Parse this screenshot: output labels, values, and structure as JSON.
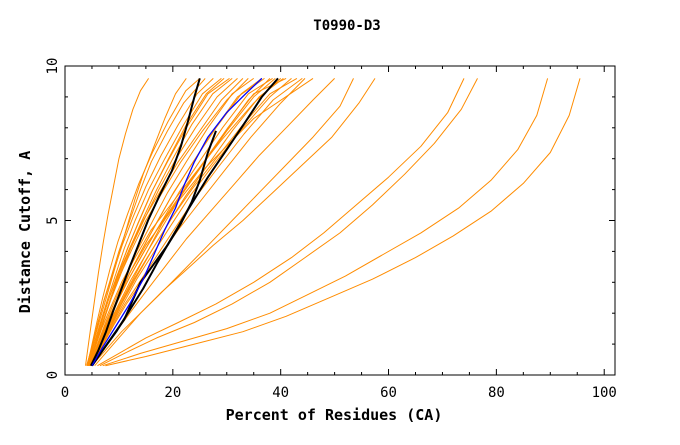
{
  "chart_data": {
    "type": "line",
    "title": "T0990-D3",
    "xlabel": "Percent of Residues (CA)",
    "ylabel": "Distance Cutoff, A",
    "xlim": [
      0,
      102
    ],
    "ylim": [
      0,
      10
    ],
    "x_ticks": [
      0,
      20,
      40,
      60,
      80,
      100
    ],
    "y_ticks": [
      0,
      5,
      10
    ],
    "grid": false,
    "legend": "none",
    "colors": {
      "background": "#ffffff",
      "models": "#ff8c00",
      "highlight_black": "#000000",
      "highlight_blue": "#0000ff",
      "frame": "#000000"
    },
    "series": [
      {
        "color": "#ff8c00",
        "x": [
          4.5,
          6,
          7.5,
          9,
          10.5,
          12,
          15,
          20,
          26,
          35,
          46
        ],
        "y": [
          0.3,
          0.8,
          1.5,
          2.1,
          2.7,
          3.3,
          4.2,
          5.4,
          6.7,
          8.3,
          9.6
        ]
      },
      {
        "color": "#ff8c00",
        "x": [
          4.4,
          5.4,
          6.8,
          8.5,
          10.5,
          13,
          16,
          20,
          24,
          29,
          35,
          40
        ],
        "y": [
          0.3,
          0.8,
          1.5,
          2.2,
          3,
          3.8,
          4.7,
          5.6,
          6.5,
          7.6,
          8.8,
          9.6
        ]
      },
      {
        "color": "#ff8c00",
        "x": [
          4,
          5,
          6,
          7.2,
          8.6,
          10,
          12,
          14,
          16,
          19,
          22,
          26
        ],
        "y": [
          0.3,
          0.9,
          1.6,
          2.4,
          3.2,
          4,
          5,
          6,
          6.9,
          7.9,
          8.8,
          9.6
        ]
      },
      {
        "color": "#ff8c00",
        "x": [
          4.3,
          5.5,
          7,
          8.5,
          10,
          12,
          14.5,
          17.5,
          21,
          25,
          29,
          33
        ],
        "y": [
          0.3,
          0.9,
          1.7,
          2.5,
          3.3,
          4.1,
          5,
          5.9,
          6.9,
          7.9,
          8.9,
          9.6
        ]
      },
      {
        "color": "#ff8c00",
        "x": [
          4.6,
          6,
          7.6,
          9.5,
          11.5,
          14,
          17,
          20.5,
          24.5,
          29,
          34,
          38
        ],
        "y": [
          0.3,
          0.9,
          1.6,
          2.3,
          3,
          3.8,
          4.7,
          5.6,
          6.6,
          7.7,
          8.9,
          9.6
        ]
      },
      {
        "color": "#ff8c00",
        "x": [
          4.8,
          6.5,
          8.5,
          10.5,
          13,
          16,
          19.5,
          23.5,
          28,
          33,
          38,
          43
        ],
        "y": [
          0.3,
          0.9,
          1.6,
          2.3,
          3.1,
          4,
          5,
          6,
          7,
          8.1,
          9.1,
          9.6
        ]
      },
      {
        "color": "#ff8c00",
        "x": [
          4.2,
          5.2,
          6.4,
          7.8,
          9.3,
          11,
          13,
          15.5,
          18.5,
          22,
          25.5,
          29
        ],
        "y": [
          0.3,
          0.9,
          1.6,
          2.4,
          3.2,
          4.1,
          5,
          6,
          7,
          8.1,
          9.1,
          9.6
        ]
      },
      {
        "color": "#ff8c00",
        "x": [
          4.5,
          5.8,
          7.3,
          9,
          11,
          13.3,
          16,
          19,
          22.5,
          26.5,
          31,
          35
        ],
        "y": [
          0.3,
          0.9,
          1.6,
          2.3,
          3.1,
          4,
          4.9,
          5.9,
          6.9,
          8,
          9.1,
          9.6
        ]
      },
      {
        "color": "#ff8c00",
        "x": [
          4.4,
          5.6,
          7,
          8.6,
          10.4,
          12.5,
          15,
          18,
          21.5,
          25.5,
          30,
          34
        ],
        "y": [
          0.3,
          0.9,
          1.7,
          2.5,
          3.3,
          4.1,
          5,
          5.9,
          6.9,
          7.9,
          8.9,
          9.6
        ]
      },
      {
        "color": "#ff8c00",
        "x": [
          4.7,
          6.2,
          8,
          10,
          12.3,
          15,
          18,
          21.5,
          25.5,
          30,
          35,
          39
        ],
        "y": [
          0.3,
          0.9,
          1.6,
          2.3,
          3.1,
          3.9,
          4.9,
          5.8,
          6.8,
          7.9,
          9,
          9.6
        ]
      },
      {
        "color": "#ff8c00",
        "x": [
          4.3,
          5.4,
          6.6,
          8,
          9.6,
          11.4,
          13.5,
          16,
          19,
          22.5,
          26.5,
          30.5
        ],
        "y": [
          0.3,
          0.9,
          1.6,
          2.4,
          3.2,
          4,
          4.9,
          5.9,
          6.9,
          8,
          9.1,
          9.6
        ]
      },
      {
        "color": "#ff8c00",
        "x": [
          4.9,
          6.6,
          8.6,
          10.8,
          13.3,
          16.2,
          19.5,
          23.2,
          27.5,
          32.5,
          38,
          42
        ],
        "y": [
          0.3,
          0.9,
          1.6,
          2.3,
          3.1,
          3.9,
          4.8,
          5.8,
          6.8,
          7.9,
          9,
          9.6
        ]
      },
      {
        "color": "#ff8c00",
        "x": [
          4.1,
          5,
          6.1,
          7.4,
          8.9,
          10.6,
          12.6,
          15,
          17.8,
          21,
          24.5,
          27.5
        ],
        "y": [
          0.3,
          0.9,
          1.7,
          2.5,
          3.3,
          4.2,
          5.1,
          6.1,
          7.1,
          8.1,
          9.1,
          9.6
        ]
      },
      {
        "color": "#ff8c00",
        "x": [
          4.6,
          6,
          7.7,
          9.6,
          11.7,
          14.1,
          16.9,
          20.1,
          23.8,
          28,
          32.7,
          36.5
        ],
        "y": [
          0.3,
          0.9,
          1.6,
          2.4,
          3.2,
          4,
          4.9,
          5.9,
          6.9,
          8,
          9.1,
          9.6
        ]
      },
      {
        "color": "#ff8c00",
        "x": [
          5,
          6.8,
          9,
          11.4,
          14.2,
          17.4,
          21,
          25,
          29.5,
          34.5,
          40,
          44.5
        ],
        "y": [
          0.3,
          0.9,
          1.6,
          2.3,
          3,
          3.8,
          4.7,
          5.6,
          6.6,
          7.7,
          8.8,
          9.6
        ]
      },
      {
        "color": "#ff8c00",
        "x": [
          4.4,
          5.5,
          6.9,
          8.4,
          10.2,
          12.2,
          14.6,
          17.4,
          20.6,
          24.2,
          28.2,
          32
        ],
        "y": [
          0.3,
          0.9,
          1.6,
          2.4,
          3.2,
          4.1,
          5,
          6,
          7,
          8,
          9,
          9.6
        ]
      },
      {
        "color": "#ff8c00",
        "x": [
          4.8,
          6.4,
          8.3,
          10.4,
          12.8,
          15.6,
          18.8,
          22.4,
          26.5,
          31,
          36,
          40.5
        ],
        "y": [
          0.3,
          0.9,
          1.6,
          2.3,
          3.1,
          3.9,
          4.8,
          5.8,
          6.8,
          7.9,
          9,
          9.6
        ]
      },
      {
        "color": "#ff8c00",
        "x": [
          4.2,
          5.2,
          6.5,
          8,
          9.7,
          11.6,
          13.8,
          16.3,
          19.2,
          22.5,
          26.2,
          29.5
        ],
        "y": [
          0.3,
          0.9,
          1.6,
          2.4,
          3.2,
          4.1,
          5,
          6,
          7,
          8.1,
          9.1,
          9.6
        ]
      },
      {
        "color": "#ff8c00",
        "x": [
          4.5,
          5.9,
          7.5,
          9.3,
          11.4,
          13.8,
          16.6,
          19.8,
          23.4,
          27.5,
          32,
          37
        ],
        "y": [
          0.3,
          0.9,
          1.6,
          2.3,
          3.1,
          3.9,
          4.8,
          5.8,
          6.8,
          7.9,
          9,
          9.6
        ]
      },
      {
        "color": "#ff8c00",
        "x": [
          4.7,
          6.3,
          8.1,
          10.2,
          12.6,
          15.3,
          18.4,
          21.9,
          25.8,
          30.2,
          35,
          41
        ],
        "y": [
          0.3,
          0.9,
          1.6,
          2.3,
          3.1,
          4,
          4.9,
          5.9,
          6.9,
          8,
          9.1,
          9.6
        ]
      },
      {
        "color": "#ff8c00",
        "x": [
          4.3,
          5.4,
          6.8,
          8.3,
          10,
          12,
          14.3,
          17,
          20,
          23.5,
          27.4,
          31
        ],
        "y": [
          0.3,
          0.9,
          1.6,
          2.4,
          3.2,
          4.1,
          5,
          6,
          7,
          8.1,
          9.1,
          9.6
        ]
      },
      {
        "color": "#ff8c00",
        "x": [
          4.9,
          6.7,
          8.8,
          11.1,
          13.8,
          16.8,
          20.2,
          24,
          28.3,
          33.2,
          38.6,
          44
        ],
        "y": [
          0.3,
          0.9,
          1.6,
          2.3,
          3,
          3.8,
          4.7,
          5.7,
          6.7,
          7.8,
          8.9,
          9.6
        ]
      },
      {
        "color": "#ff8c00",
        "x": [
          4.1,
          4.9,
          5.9,
          7,
          8.3,
          9.8,
          11.6,
          13.7,
          16.2,
          19.1,
          22.4,
          25
        ],
        "y": [
          0.3,
          0.9,
          1.7,
          2.5,
          3.4,
          4.3,
          5.2,
          6.2,
          7.2,
          8.2,
          9.2,
          9.6
        ]
      },
      {
        "color": "#ff8c00",
        "x": [
          4.6,
          6.1,
          7.8,
          9.8,
          12.1,
          14.7,
          17.7,
          21.1,
          24.9,
          29.2,
          34,
          38.5
        ],
        "y": [
          0.3,
          0.9,
          1.6,
          2.4,
          3.2,
          4,
          4.9,
          5.9,
          6.9,
          8,
          9.1,
          9.6
        ]
      },
      {
        "color": "#ff8c00",
        "x": [
          3.8,
          4.5,
          5.3,
          6.2,
          7.1,
          8,
          9,
          10,
          11.2,
          12.6,
          14,
          15.5
        ],
        "y": [
          0.3,
          1.2,
          2.2,
          3.3,
          4.3,
          5.2,
          6.1,
          7,
          7.8,
          8.6,
          9.2,
          9.6
        ]
      },
      {
        "color": "#ff8c00",
        "x": [
          4.2,
          5.5,
          7,
          8.5,
          10,
          11.5,
          13,
          14.5,
          16.5,
          18.5,
          20.5,
          22.5
        ],
        "y": [
          0.3,
          1.2,
          2.1,
          3,
          3.9,
          4.8,
          5.7,
          6.5,
          7.4,
          8.3,
          9.1,
          9.6
        ]
      },
      {
        "color": "#ff8c00",
        "x": [
          5,
          7,
          9.5,
          12,
          15,
          18.5,
          22.5,
          27,
          31.5,
          36,
          41,
          46,
          50
        ],
        "y": [
          0.3,
          0.8,
          1.4,
          2,
          2.7,
          3.5,
          4.4,
          5.3,
          6.2,
          7.1,
          8,
          8.9,
          9.6
        ]
      },
      {
        "color": "#ff8c00",
        "x": [
          5.5,
          8,
          11,
          14,
          17.5,
          21.5,
          26,
          31,
          36,
          41,
          46,
          51,
          53.5
        ],
        "y": [
          0.3,
          0.8,
          1.4,
          2,
          2.6,
          3.3,
          4.1,
          5,
          5.9,
          6.8,
          7.7,
          8.7,
          9.6
        ]
      },
      {
        "color": "#ff8c00",
        "x": [
          5,
          7.5,
          10.5,
          14,
          18,
          22.5,
          27.5,
          33,
          38.5,
          44,
          49.5,
          54.5,
          57.5
        ],
        "y": [
          0.3,
          0.8,
          1.4,
          2,
          2.7,
          3.4,
          4.2,
          5,
          5.9,
          6.8,
          7.7,
          8.8,
          9.6
        ]
      },
      {
        "color": "#ff8c00",
        "x": [
          6,
          10,
          15,
          21,
          28,
          35,
          42,
          48,
          54,
          60,
          66,
          71,
          74
        ],
        "y": [
          0.3,
          0.7,
          1.2,
          1.7,
          2.3,
          3,
          3.8,
          4.6,
          5.5,
          6.4,
          7.4,
          8.5,
          9.6
        ]
      },
      {
        "color": "#ff8c00",
        "x": [
          6.5,
          11,
          17,
          24,
          31,
          38,
          44.5,
          51,
          57,
          63,
          68.5,
          73.5,
          76.5
        ],
        "y": [
          0.3,
          0.7,
          1.2,
          1.7,
          2.3,
          3,
          3.8,
          4.6,
          5.5,
          6.5,
          7.5,
          8.6,
          9.6
        ]
      },
      {
        "color": "#ff8c00",
        "x": [
          7,
          14,
          22,
          30,
          38,
          45,
          52,
          59,
          66,
          73,
          79,
          84,
          87.5,
          89.5
        ],
        "y": [
          0.3,
          0.7,
          1.1,
          1.5,
          2,
          2.6,
          3.2,
          3.9,
          4.6,
          5.4,
          6.3,
          7.3,
          8.4,
          9.6
        ]
      },
      {
        "color": "#ff8c00",
        "x": [
          7.5,
          15,
          24,
          33,
          41,
          49,
          57,
          65,
          72,
          79,
          85,
          90,
          93.5,
          95.5
        ],
        "y": [
          0.3,
          0.6,
          1,
          1.4,
          1.9,
          2.5,
          3.1,
          3.8,
          4.5,
          5.3,
          6.2,
          7.2,
          8.4,
          9.6
        ]
      },
      {
        "color": "#000000",
        "x": [
          4.8,
          6.2,
          7.6,
          9,
          10.5,
          12,
          13.6,
          15.4,
          17.5,
          19.8,
          21.5,
          22.8,
          24,
          25
        ],
        "y": [
          0.3,
          0.8,
          1.4,
          2.1,
          2.8,
          3.5,
          4.2,
          5,
          5.8,
          6.6,
          7.4,
          8.2,
          9,
          9.6
        ]
      },
      {
        "color": "#000000",
        "x": [
          5,
          7,
          9.5,
          12,
          14.5,
          17,
          20,
          23,
          26.5,
          30,
          33.5,
          36.5,
          39.5
        ],
        "y": [
          0.3,
          0.8,
          1.4,
          2.1,
          2.8,
          3.6,
          4.5,
          5.4,
          6.4,
          7.3,
          8.2,
          9,
          9.6
        ]
      },
      {
        "color": "#000000",
        "x": [
          5,
          7,
          9,
          11,
          12.5,
          14,
          16.5,
          19,
          21.5,
          23.5,
          25,
          26.5,
          28
        ],
        "y": [
          0.3,
          0.8,
          1.3,
          1.8,
          2.4,
          3,
          3.6,
          4.2,
          4.9,
          5.6,
          6.3,
          7.2,
          7.9
        ]
      },
      {
        "color": "#0000ff",
        "x": [
          5,
          7,
          9.5,
          12,
          14.5,
          16.5,
          18.5,
          20.5,
          22,
          24,
          26.5,
          30,
          33.5,
          36.5
        ],
        "y": [
          0.3,
          0.9,
          1.6,
          2.3,
          3.1,
          3.9,
          4.7,
          5.4,
          6.1,
          6.9,
          7.7,
          8.5,
          9.1,
          9.6
        ]
      }
    ]
  }
}
